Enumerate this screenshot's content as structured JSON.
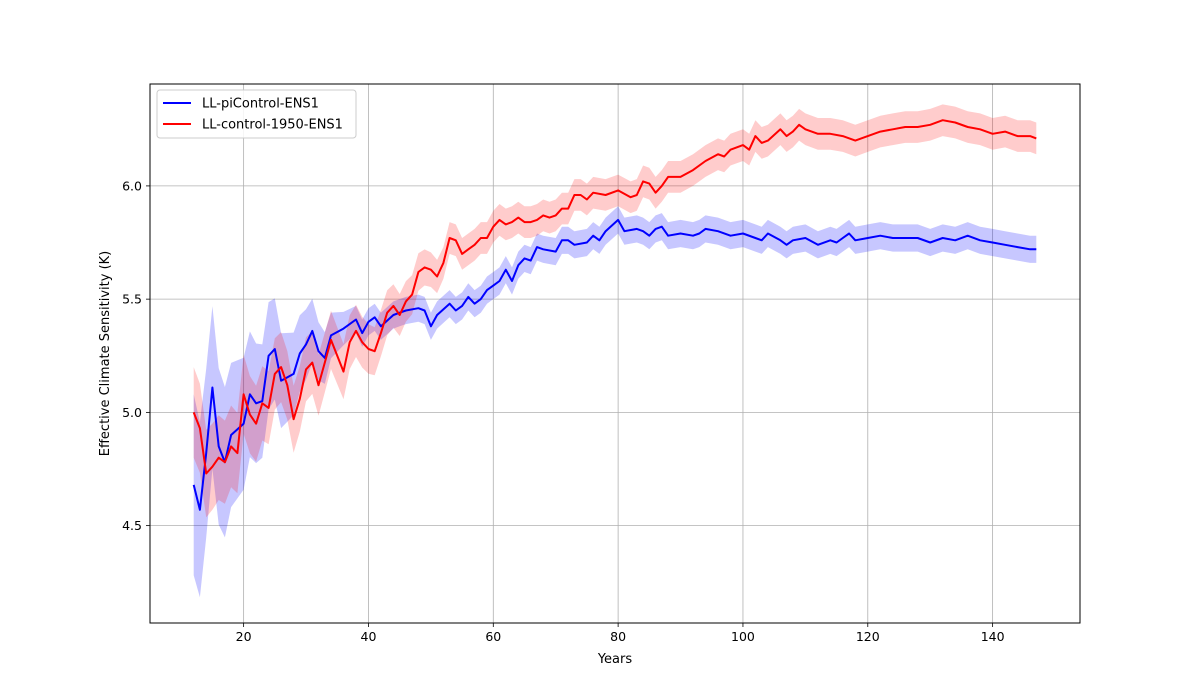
{
  "chart_data": {
    "type": "line",
    "title": "",
    "xlabel": "Years",
    "ylabel": "Effective Climate Sensitivity (K)",
    "xlim": [
      5,
      154
    ],
    "ylim": [
      4.07,
      6.45
    ],
    "xticks": [
      20,
      40,
      60,
      80,
      100,
      120,
      140
    ],
    "yticks": [
      4.5,
      5.0,
      5.5,
      6.0
    ],
    "xtick_labels": [
      "20",
      "40",
      "60",
      "80",
      "100",
      "120",
      "140"
    ],
    "ytick_labels": [
      "4.5",
      "5.0",
      "5.5",
      "6.0"
    ],
    "grid": true,
    "legend_position": "top-left",
    "series": [
      {
        "name": "LL-piControl-ENS1",
        "color": "#0000ff",
        "band_color": "#0000ff",
        "band_opacity": 0.22,
        "band_halfwidth_start": 0.4,
        "band_halfwidth_end": 0.06,
        "band_taper_years": 25,
        "x": [
          12,
          13,
          14,
          15,
          16,
          17,
          18,
          20,
          21,
          22,
          23,
          24,
          25,
          26,
          28,
          29,
          30,
          31,
          32,
          33,
          34,
          36,
          38,
          39,
          40,
          41,
          42,
          44,
          45,
          46,
          48,
          49,
          50,
          51,
          53,
          54,
          55,
          56,
          57,
          58,
          59,
          60,
          61,
          62,
          63,
          64,
          65,
          66,
          67,
          68,
          70,
          71,
          72,
          73,
          75,
          76,
          77,
          78,
          80,
          81,
          83,
          84,
          85,
          86,
          87,
          88,
          90,
          92,
          93,
          94,
          96,
          98,
          100,
          102,
          103,
          104,
          106,
          107,
          108,
          110,
          112,
          114,
          115,
          116,
          117,
          118,
          120,
          122,
          124,
          126,
          128,
          130,
          132,
          134,
          136,
          138,
          140,
          142,
          144,
          146,
          147
        ],
        "values": [
          4.68,
          4.57,
          4.82,
          5.11,
          4.85,
          4.78,
          4.9,
          4.95,
          5.08,
          5.04,
          5.05,
          5.25,
          5.28,
          5.14,
          5.17,
          5.26,
          5.3,
          5.36,
          5.27,
          5.24,
          5.34,
          5.37,
          5.41,
          5.35,
          5.4,
          5.42,
          5.38,
          5.43,
          5.44,
          5.45,
          5.46,
          5.45,
          5.38,
          5.43,
          5.48,
          5.45,
          5.47,
          5.51,
          5.48,
          5.5,
          5.54,
          5.56,
          5.58,
          5.63,
          5.58,
          5.65,
          5.68,
          5.67,
          5.73,
          5.72,
          5.71,
          5.76,
          5.76,
          5.74,
          5.75,
          5.78,
          5.76,
          5.8,
          5.85,
          5.8,
          5.81,
          5.8,
          5.78,
          5.81,
          5.82,
          5.78,
          5.79,
          5.78,
          5.79,
          5.81,
          5.8,
          5.78,
          5.79,
          5.77,
          5.76,
          5.79,
          5.76,
          5.74,
          5.76,
          5.77,
          5.74,
          5.76,
          5.75,
          5.77,
          5.79,
          5.76,
          5.77,
          5.78,
          5.77,
          5.77,
          5.77,
          5.75,
          5.77,
          5.76,
          5.78,
          5.76,
          5.75,
          5.74,
          5.73,
          5.72,
          5.72
        ]
      },
      {
        "name": "LL-control-1950-ENS1",
        "color": "#ff0000",
        "band_color": "#ff0000",
        "band_opacity": 0.2,
        "band_halfwidth_start": 0.2,
        "band_halfwidth_end": 0.07,
        "band_taper_years": 40,
        "x": [
          12,
          13,
          14,
          15,
          16,
          17,
          18,
          19,
          20,
          21,
          22,
          23,
          24,
          25,
          26,
          27,
          28,
          29,
          30,
          31,
          32,
          33,
          34,
          36,
          37,
          38,
          39,
          40,
          41,
          42,
          43,
          44,
          45,
          46,
          47,
          48,
          49,
          50,
          51,
          52,
          53,
          54,
          55,
          56,
          57,
          58,
          59,
          60,
          61,
          62,
          63,
          64,
          65,
          66,
          67,
          68,
          69,
          70,
          71,
          72,
          73,
          74,
          75,
          76,
          78,
          80,
          82,
          83,
          84,
          85,
          86,
          87,
          88,
          90,
          92,
          94,
          96,
          97,
          98,
          100,
          101,
          102,
          103,
          104,
          106,
          107,
          108,
          109,
          110,
          112,
          114,
          116,
          118,
          120,
          122,
          124,
          126,
          128,
          130,
          132,
          134,
          136,
          138,
          140,
          142,
          144,
          146,
          147
        ],
        "values": [
          5.0,
          4.93,
          4.73,
          4.76,
          4.8,
          4.78,
          4.85,
          4.82,
          5.08,
          4.99,
          4.95,
          5.04,
          5.02,
          5.17,
          5.2,
          5.12,
          4.97,
          5.06,
          5.19,
          5.22,
          5.12,
          5.22,
          5.32,
          5.18,
          5.31,
          5.36,
          5.31,
          5.28,
          5.27,
          5.35,
          5.44,
          5.47,
          5.43,
          5.49,
          5.52,
          5.62,
          5.64,
          5.63,
          5.6,
          5.66,
          5.77,
          5.76,
          5.7,
          5.72,
          5.74,
          5.77,
          5.77,
          5.82,
          5.85,
          5.83,
          5.84,
          5.86,
          5.84,
          5.84,
          5.85,
          5.87,
          5.86,
          5.87,
          5.9,
          5.9,
          5.96,
          5.96,
          5.94,
          5.97,
          5.96,
          5.98,
          5.95,
          5.96,
          6.02,
          6.01,
          5.97,
          6.0,
          6.04,
          6.04,
          6.07,
          6.11,
          6.14,
          6.13,
          6.16,
          6.18,
          6.16,
          6.22,
          6.19,
          6.2,
          6.25,
          6.22,
          6.24,
          6.27,
          6.25,
          6.23,
          6.23,
          6.22,
          6.2,
          6.22,
          6.24,
          6.25,
          6.26,
          6.26,
          6.27,
          6.29,
          6.28,
          6.26,
          6.25,
          6.23,
          6.24,
          6.22,
          6.22,
          6.21
        ]
      }
    ]
  }
}
